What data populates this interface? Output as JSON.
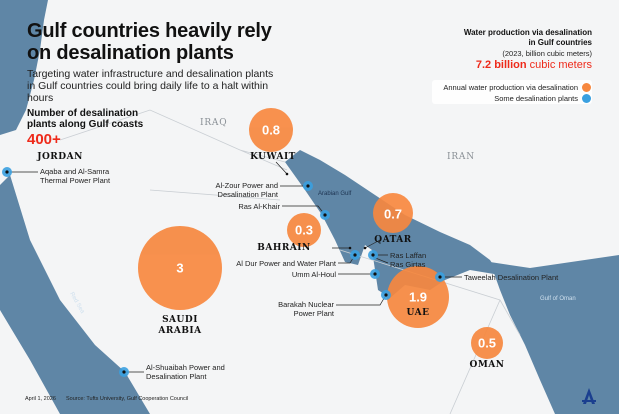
{
  "title": "Gulf countries heavily rely on desalination plants",
  "subtitle": "Targeting water infrastructure and desalination plants in Gulf countries could bring daily life to a halt within hours",
  "plants_count": {
    "label": "Number of desalination plants along Gulf coasts",
    "value": "400+"
  },
  "production": {
    "title_line1": "Water production via desalination",
    "title_line2": "in Gulf countries",
    "unit_note": "(2023, billion cubic meters)",
    "total_value": "7.2 billion",
    "total_unit": "cubic meters"
  },
  "legend": [
    {
      "label": "Annual water production via desalination",
      "color": "#f7883f"
    },
    {
      "label": "Some desalination plants",
      "color": "#3aa0e0"
    }
  ],
  "countries": [
    {
      "name": "KUWAIT",
      "value": "0.8"
    },
    {
      "name": "SAUDI ARABIA",
      "value": "3"
    },
    {
      "name": "BAHRAIN",
      "value": "0.3"
    },
    {
      "name": "QATAR",
      "value": "0.7"
    },
    {
      "name": "UAE",
      "value": "1.9"
    },
    {
      "name": "OMAN",
      "value": "0.5"
    }
  ],
  "other_countries": {
    "jordan": "JORDAN",
    "iraq": "IRAQ",
    "iran": "IRAN"
  },
  "water_bodies": {
    "gulf": "Arabian Gulf",
    "red_sea": "Red Sea",
    "oman": "Gulf of Oman"
  },
  "plants": [
    {
      "name": "Aqaba and Al-Samra Thermal Power Plant"
    },
    {
      "name": "Al-Zour Power and Desalination Plant"
    },
    {
      "name": "Ras Al-Khair"
    },
    {
      "name": "Al Dur Power and Water Plant"
    },
    {
      "name": "Umm Al-Houl"
    },
    {
      "name": "Barakah Nuclear Power Plant"
    },
    {
      "name": "Ras Laffan"
    },
    {
      "name": "Ras Girtas"
    },
    {
      "name": "Taweelah Desalination Plant"
    },
    {
      "name": "Al-Shuaibah Power and Desalination Plant"
    }
  ],
  "footer": {
    "date": "April 1, 2026",
    "source": "Source: Tufts University, Gulf Cooperation Council"
  },
  "colors": {
    "water": "#5f86a6",
    "bubble": "#f7883f",
    "accent": "#ee2a1a",
    "plant": "#3aa0e0"
  }
}
